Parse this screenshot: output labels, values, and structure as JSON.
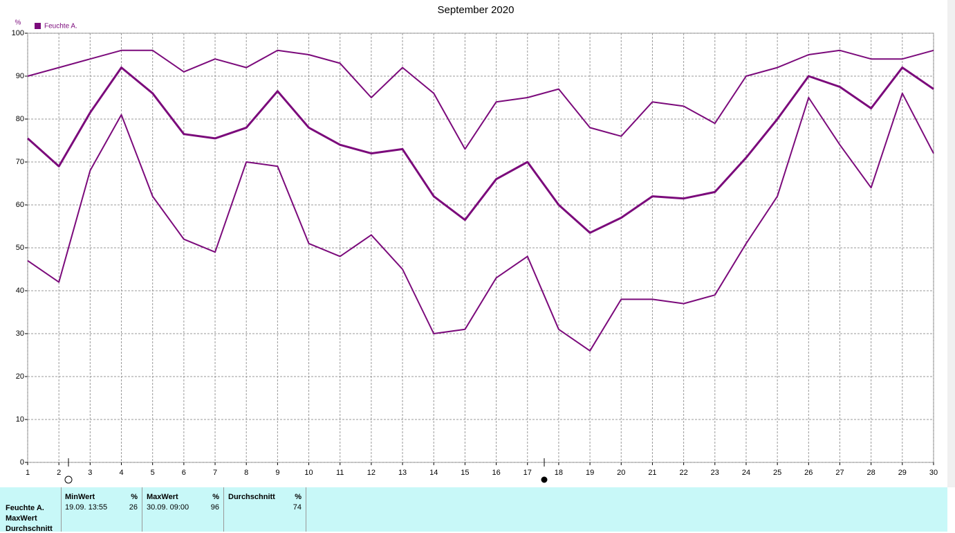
{
  "chart_data": {
    "type": "line",
    "title": "September 2020",
    "y_label": "%",
    "legend": "Feuchte A.",
    "x": [
      1,
      2,
      3,
      4,
      5,
      6,
      7,
      8,
      9,
      10,
      11,
      12,
      13,
      14,
      15,
      16,
      17,
      18,
      19,
      20,
      21,
      22,
      23,
      24,
      25,
      26,
      27,
      28,
      29,
      30
    ],
    "xlim": [
      1,
      30
    ],
    "xticks": [
      1,
      2,
      3,
      4,
      5,
      6,
      7,
      8,
      9,
      10,
      11,
      12,
      13,
      14,
      15,
      16,
      17,
      18,
      19,
      20,
      21,
      22,
      23,
      24,
      25,
      26,
      27,
      28,
      29,
      30
    ],
    "ylim": [
      0,
      100
    ],
    "yticks": [
      0,
      10,
      20,
      30,
      40,
      50,
      60,
      70,
      80,
      90,
      100
    ],
    "grid": true,
    "series": [
      {
        "color": "#7b0a7b",
        "line_width": 2,
        "values": [
          90,
          92,
          94,
          96,
          96,
          91,
          94,
          92,
          96,
          95,
          93,
          85,
          92,
          86,
          73,
          84,
          85,
          87,
          78,
          76,
          84,
          83,
          79,
          90,
          92,
          95,
          96,
          94,
          94,
          96
        ]
      },
      {
        "color": "#7b0a7b",
        "line_width": 3,
        "values": [
          75.5,
          69,
          81.5,
          92,
          86,
          76.5,
          75.5,
          78,
          86.5,
          78,
          74,
          72,
          73,
          62,
          56.5,
          66,
          70,
          60,
          53.5,
          57,
          62,
          61.5,
          63,
          71,
          80,
          90,
          87.5,
          82.5,
          92,
          87
        ]
      },
      {
        "color": "#7b0a7b",
        "line_width": 2,
        "values": [
          47,
          42,
          68,
          81,
          62,
          52,
          49,
          70,
          69,
          51,
          48,
          53,
          45,
          30,
          31,
          43,
          48,
          31,
          26,
          38,
          38,
          37,
          39,
          51,
          62,
          85,
          74,
          64,
          86,
          72
        ]
      }
    ]
  },
  "stats": {
    "row_labels": [
      "Feuchte A.",
      "MaxWert",
      "Durchschnitt"
    ],
    "columns": [
      {
        "header": "MinWert",
        "unit": "%",
        "time": "19.09.  13:55",
        "value": 26
      },
      {
        "header": "MaxWert",
        "unit": "%",
        "time": "30.09.  09:00",
        "value": 96
      },
      {
        "header": "Durchschnitt",
        "unit": "%",
        "value": 74
      }
    ]
  }
}
